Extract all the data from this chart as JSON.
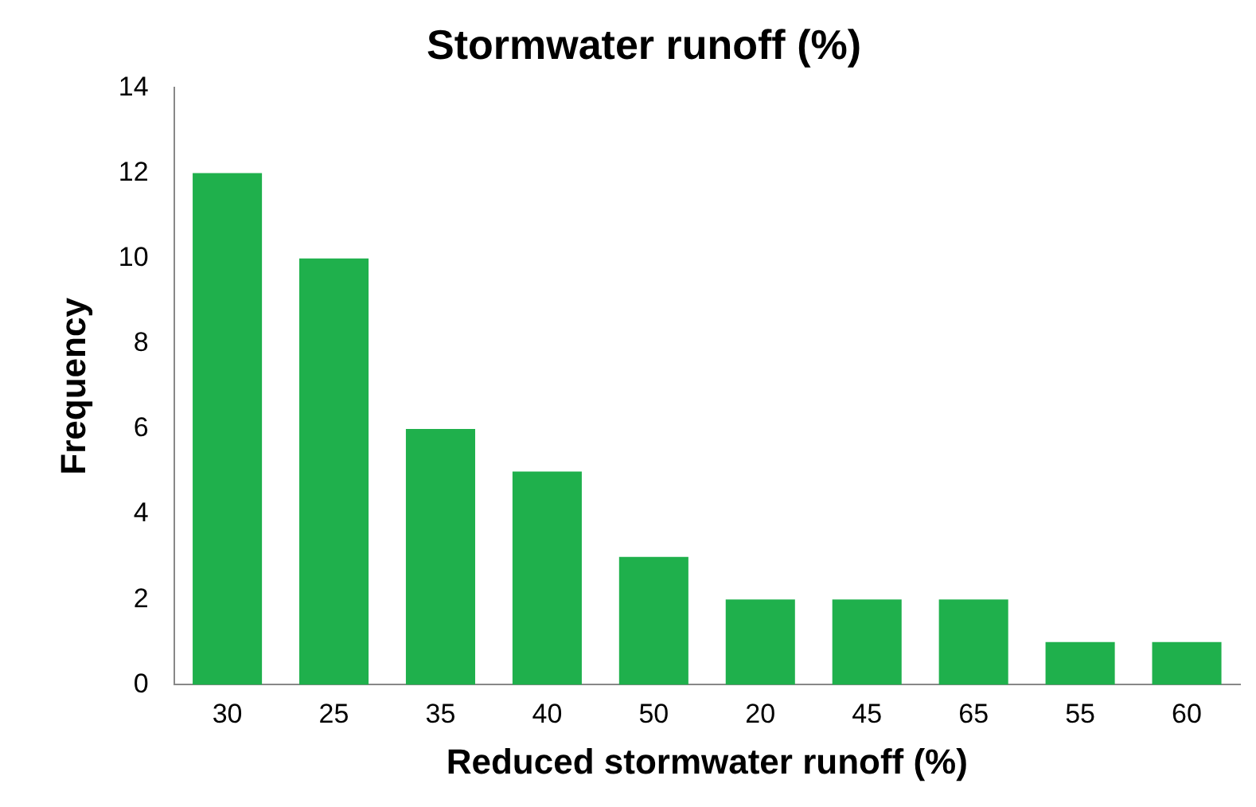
{
  "chart_data": {
    "type": "bar",
    "title": "Stormwater runoff (%)",
    "xlabel": "Reduced stormwater runoff (%)",
    "ylabel": "Frequency",
    "categories": [
      "30",
      "25",
      "35",
      "40",
      "50",
      "20",
      "45",
      "65",
      "55",
      "60"
    ],
    "values": [
      12,
      10,
      6,
      5,
      3,
      2,
      2,
      2,
      1,
      1
    ],
    "color": "#1fb04c",
    "ylim": [
      0,
      14
    ],
    "yticks": [
      0,
      2,
      4,
      6,
      8,
      10,
      12,
      14
    ],
    "grid": false,
    "legend": false
  }
}
